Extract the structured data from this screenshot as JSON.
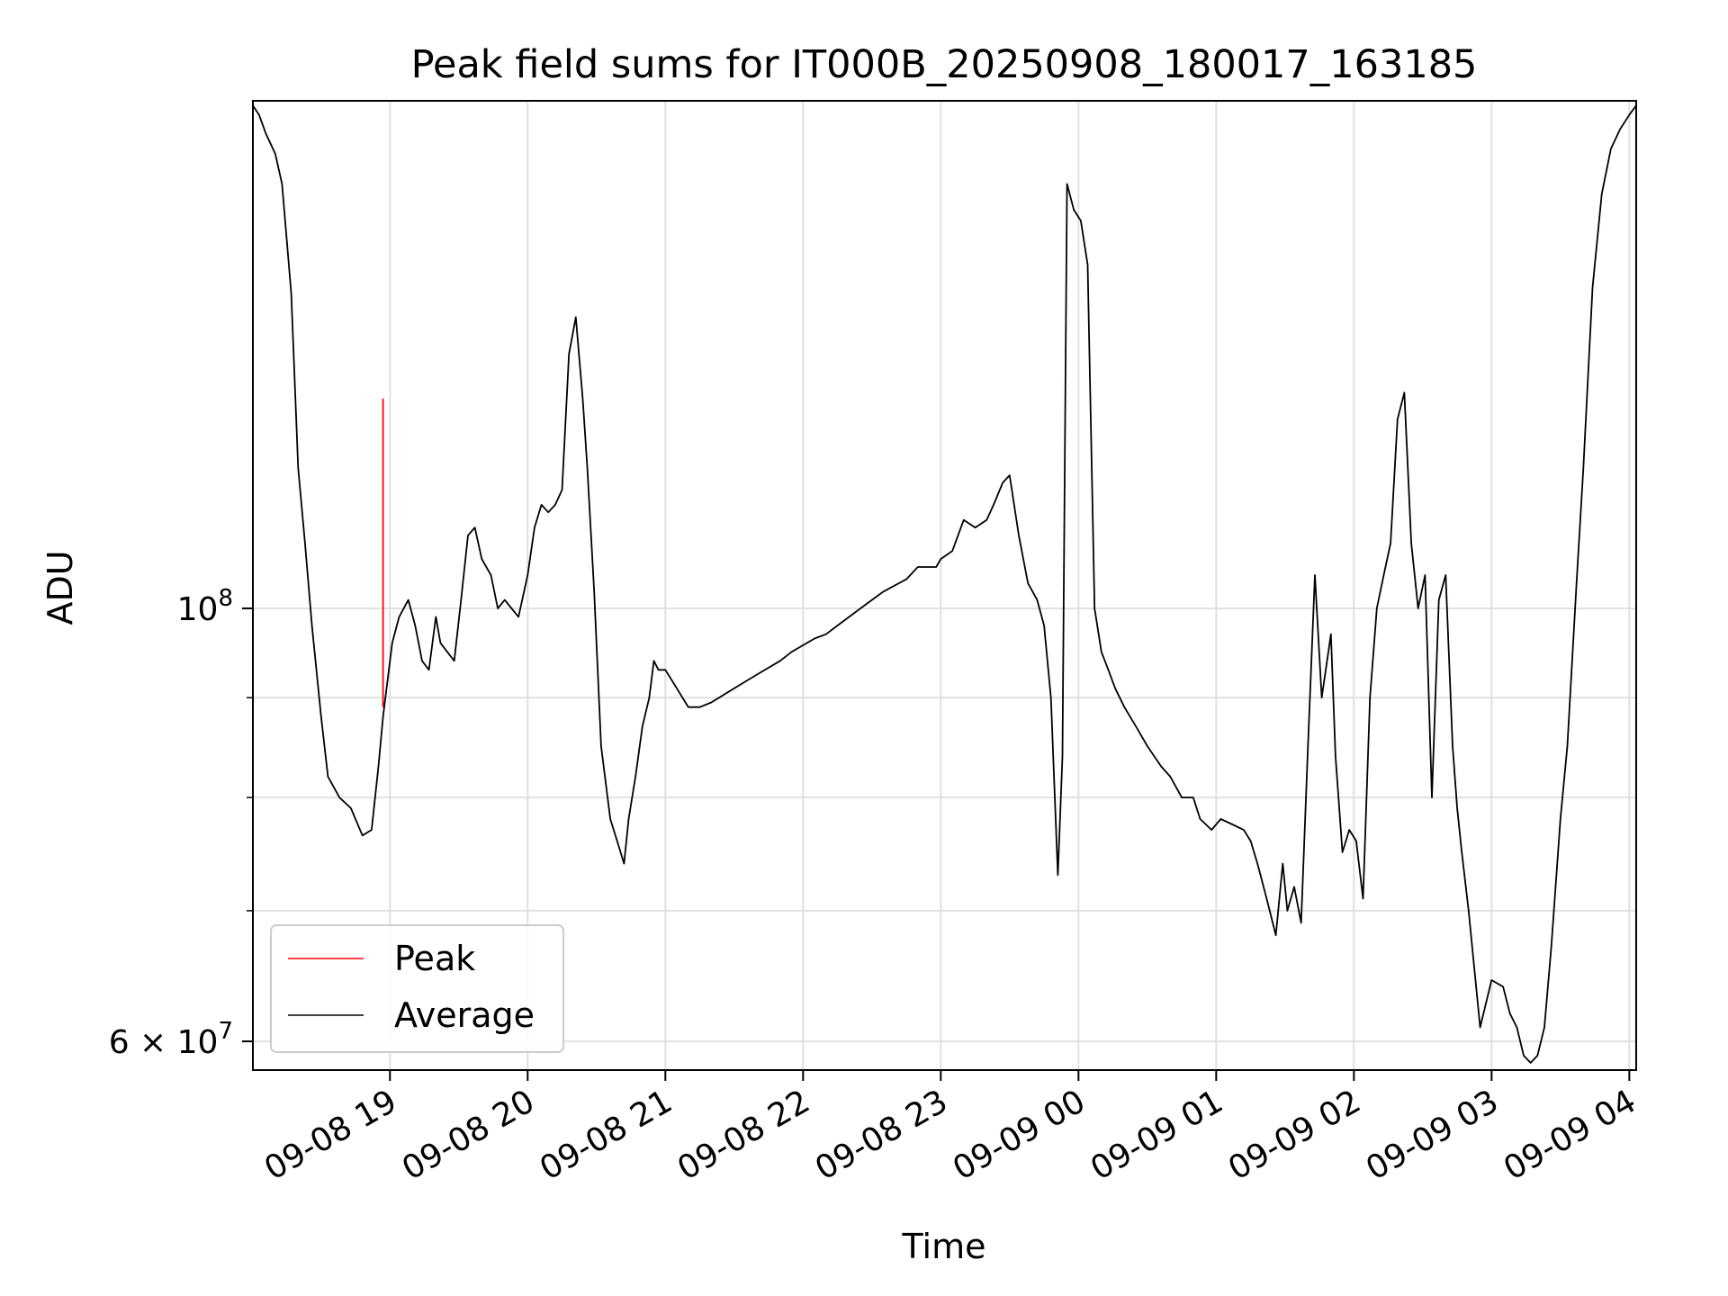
{
  "chart_data": {
    "type": "line",
    "title": "Peak field sums for IT000B_20250908_180017_163185",
    "xlabel": "Time",
    "ylabel": "ADU",
    "yscale": "log",
    "xlim": [
      "2025-09-08 18:00:17",
      "2025-09-09 04:03:00"
    ],
    "ylim": [
      58000000,
      182000000
    ],
    "x_ticks": [
      {
        "value": "2025-09-08 19:00",
        "label": "09-08 19"
      },
      {
        "value": "2025-09-08 20:00",
        "label": "09-08 20"
      },
      {
        "value": "2025-09-08 21:00",
        "label": "09-08 21"
      },
      {
        "value": "2025-09-08 22:00",
        "label": "09-08 22"
      },
      {
        "value": "2025-09-08 23:00",
        "label": "09-08 23"
      },
      {
        "value": "2025-09-09 00:00",
        "label": "09-09 00"
      },
      {
        "value": "2025-09-09 01:00",
        "label": "09-09 01"
      },
      {
        "value": "2025-09-09 02:00",
        "label": "09-09 02"
      },
      {
        "value": "2025-09-09 03:00",
        "label": "09-09 03"
      },
      {
        "value": "2025-09-09 04:00",
        "label": "09-09 04"
      }
    ],
    "y_major_ticks": [
      {
        "value": 100000000,
        "base": "10",
        "exp": "8"
      },
      {
        "value": 60000000,
        "mant": "6 × 10",
        "exp": "7"
      }
    ],
    "y_minor_ticks": [
      70000000,
      80000000,
      90000000
    ],
    "grid": true,
    "legend": {
      "placement": "lower-left"
    },
    "series": [
      {
        "name": "Peak",
        "color": "#ff0000",
        "line_width": 1,
        "x": [
          "2025-09-08 18:57:00",
          "2025-09-08 18:57:00",
          "2025-09-08 18:57:00"
        ],
        "y": [
          89000000,
          128000000,
          92000000
        ]
      },
      {
        "name": "Average",
        "color": "#000000",
        "line_width": 1,
        "x": [
          "2025-09-08 18:00:17",
          "2025-09-08 18:03",
          "2025-09-08 18:06",
          "2025-09-08 18:10",
          "2025-09-08 18:13",
          "2025-09-08 18:17",
          "2025-09-08 18:20",
          "2025-09-08 18:23",
          "2025-09-08 18:26",
          "2025-09-08 18:30",
          "2025-09-08 18:33",
          "2025-09-08 18:38",
          "2025-09-08 18:43",
          "2025-09-08 18:48",
          "2025-09-08 18:52",
          "2025-09-08 18:55",
          "2025-09-08 18:57",
          "2025-09-08 19:01",
          "2025-09-08 19:04",
          "2025-09-08 19:08",
          "2025-09-08 19:11",
          "2025-09-08 19:14",
          "2025-09-08 19:17",
          "2025-09-08 19:20",
          "2025-09-08 19:22",
          "2025-09-08 19:25",
          "2025-09-08 19:28",
          "2025-09-08 19:31",
          "2025-09-08 19:34",
          "2025-09-08 19:37",
          "2025-09-08 19:40",
          "2025-09-08 19:44",
          "2025-09-08 19:47",
          "2025-09-08 19:50",
          "2025-09-08 19:53",
          "2025-09-08 19:56",
          "2025-09-08 20:00",
          "2025-09-08 20:03",
          "2025-09-08 20:06",
          "2025-09-08 20:09",
          "2025-09-08 20:12",
          "2025-09-08 20:15",
          "2025-09-08 20:18",
          "2025-09-08 20:21",
          "2025-09-08 20:24",
          "2025-09-08 20:26",
          "2025-09-08 20:29",
          "2025-09-08 20:32",
          "2025-09-08 20:36",
          "2025-09-08 20:39",
          "2025-09-08 20:42",
          "2025-09-08 20:44",
          "2025-09-08 20:47",
          "2025-09-08 20:50",
          "2025-09-08 20:53",
          "2025-09-08 20:55",
          "2025-09-08 20:57",
          "2025-09-08 21:00",
          "2025-09-08 21:05",
          "2025-09-08 21:10",
          "2025-09-08 21:15",
          "2025-09-08 21:20",
          "2025-09-08 21:30",
          "2025-09-08 21:40",
          "2025-09-08 21:50",
          "2025-09-08 21:55",
          "2025-09-08 22:05",
          "2025-09-08 22:10",
          "2025-09-08 22:15",
          "2025-09-08 22:25",
          "2025-09-08 22:30",
          "2025-09-08 22:35",
          "2025-09-08 22:45",
          "2025-09-08 22:50",
          "2025-09-08 22:58",
          "2025-09-08 23:00",
          "2025-09-08 23:05",
          "2025-09-08 23:10",
          "2025-09-08 23:15",
          "2025-09-08 23:20",
          "2025-09-08 23:23",
          "2025-09-08 23:27",
          "2025-09-08 23:30",
          "2025-09-08 23:34",
          "2025-09-08 23:38",
          "2025-09-08 23:42",
          "2025-09-08 23:45",
          "2025-09-08 23:48",
          "2025-09-08 23:51",
          "2025-09-08 23:53",
          "2025-09-08 23:55",
          "2025-09-08 23:58",
          "2025-09-09 00:01",
          "2025-09-09 00:04",
          "2025-09-09 00:07",
          "2025-09-09 00:10",
          "2025-09-09 00:13",
          "2025-09-09 00:16",
          "2025-09-09 00:20",
          "2025-09-09 00:25",
          "2025-09-09 00:30",
          "2025-09-09 00:36",
          "2025-09-09 00:40",
          "2025-09-09 00:45",
          "2025-09-09 00:50",
          "2025-09-09 00:53",
          "2025-09-09 00:58",
          "2025-09-09 01:02",
          "2025-09-09 01:07",
          "2025-09-09 01:12",
          "2025-09-09 01:15",
          "2025-09-09 01:18",
          "2025-09-09 01:22",
          "2025-09-09 01:26",
          "2025-09-09 01:29",
          "2025-09-09 01:31",
          "2025-09-09 01:34",
          "2025-09-09 01:37",
          "2025-09-09 01:40",
          "2025-09-09 01:43",
          "2025-09-09 01:46",
          "2025-09-09 01:50",
          "2025-09-09 01:52",
          "2025-09-09 01:55",
          "2025-09-09 01:58",
          "2025-09-09 02:01",
          "2025-09-09 02:04",
          "2025-09-09 02:07",
          "2025-09-09 02:10",
          "2025-09-09 02:13",
          "2025-09-09 02:16",
          "2025-09-09 02:19",
          "2025-09-09 02:22",
          "2025-09-09 02:25",
          "2025-09-09 02:28",
          "2025-09-09 02:31",
          "2025-09-09 02:34",
          "2025-09-09 02:37",
          "2025-09-09 02:40",
          "2025-09-09 02:43",
          "2025-09-09 02:45",
          "2025-09-09 02:47",
          "2025-09-09 02:50",
          "2025-09-09 02:55",
          "2025-09-09 03:00",
          "2025-09-09 03:05",
          "2025-09-09 03:08",
          "2025-09-09 03:11",
          "2025-09-09 03:14",
          "2025-09-09 03:17",
          "2025-09-09 03:20",
          "2025-09-09 03:23",
          "2025-09-09 03:26",
          "2025-09-09 03:30",
          "2025-09-09 03:33",
          "2025-09-09 03:37",
          "2025-09-09 03:40",
          "2025-09-09 03:44",
          "2025-09-09 03:48",
          "2025-09-09 03:52",
          "2025-09-09 03:56",
          "2025-09-09 04:00",
          "2025-09-09 04:03"
        ],
        "y": [
          181000000,
          179000000,
          175000000,
          171000000,
          165000000,
          145000000,
          118000000,
          108000000,
          98000000,
          88000000,
          82000000,
          80000000,
          79000000,
          76500000,
          77000000,
          83000000,
          88000000,
          96000000,
          99000000,
          101000000,
          98000000,
          94000000,
          93000000,
          99000000,
          96000000,
          95000000,
          94000000,
          101000000,
          109000000,
          110000000,
          106000000,
          104000000,
          100000000,
          101000000,
          100000000,
          99000000,
          104000000,
          110000000,
          113000000,
          112000000,
          113000000,
          115000000,
          135000000,
          141000000,
          128000000,
          118000000,
          102000000,
          85000000,
          78000000,
          76000000,
          74000000,
          78000000,
          82000000,
          87000000,
          90000000,
          94000000,
          93000000,
          93000000,
          91000000,
          89000000,
          89000000,
          89500000,
          91000000,
          92500000,
          94000000,
          95000000,
          96500000,
          97000000,
          98000000,
          100000000,
          101000000,
          102000000,
          103500000,
          105000000,
          105000000,
          106000000,
          107000000,
          111000000,
          110000000,
          111000000,
          113000000,
          116000000,
          117000000,
          109000000,
          103000000,
          101000000,
          98000000,
          90000000,
          73000000,
          84000000,
          165000000,
          160000000,
          158000000,
          150000000,
          100000000,
          95000000,
          93000000,
          91000000,
          89000000,
          87000000,
          85000000,
          83000000,
          82000000,
          80000000,
          80000000,
          78000000,
          77000000,
          78000000,
          77500000,
          77000000,
          76000000,
          74000000,
          71000000,
          68000000,
          74000000,
          70000000,
          72000000,
          69000000,
          85000000,
          104000000,
          90000000,
          97000000,
          84000000,
          75000000,
          77000000,
          76000000,
          71000000,
          90000000,
          100000000,
          104000000,
          108000000,
          125000000,
          129000000,
          108000000,
          100000000,
          104000000,
          80000000,
          101000000,
          104000000,
          85000000,
          79000000,
          75000000,
          70000000,
          61000000,
          64500000,
          64000000,
          62000000,
          61000000,
          59000000,
          58500000,
          59000000,
          61000000,
          67000000,
          78000000,
          85000000,
          103000000,
          118000000,
          146000000,
          163000000,
          172000000,
          176000000,
          179000000,
          181000000
        ]
      }
    ]
  }
}
